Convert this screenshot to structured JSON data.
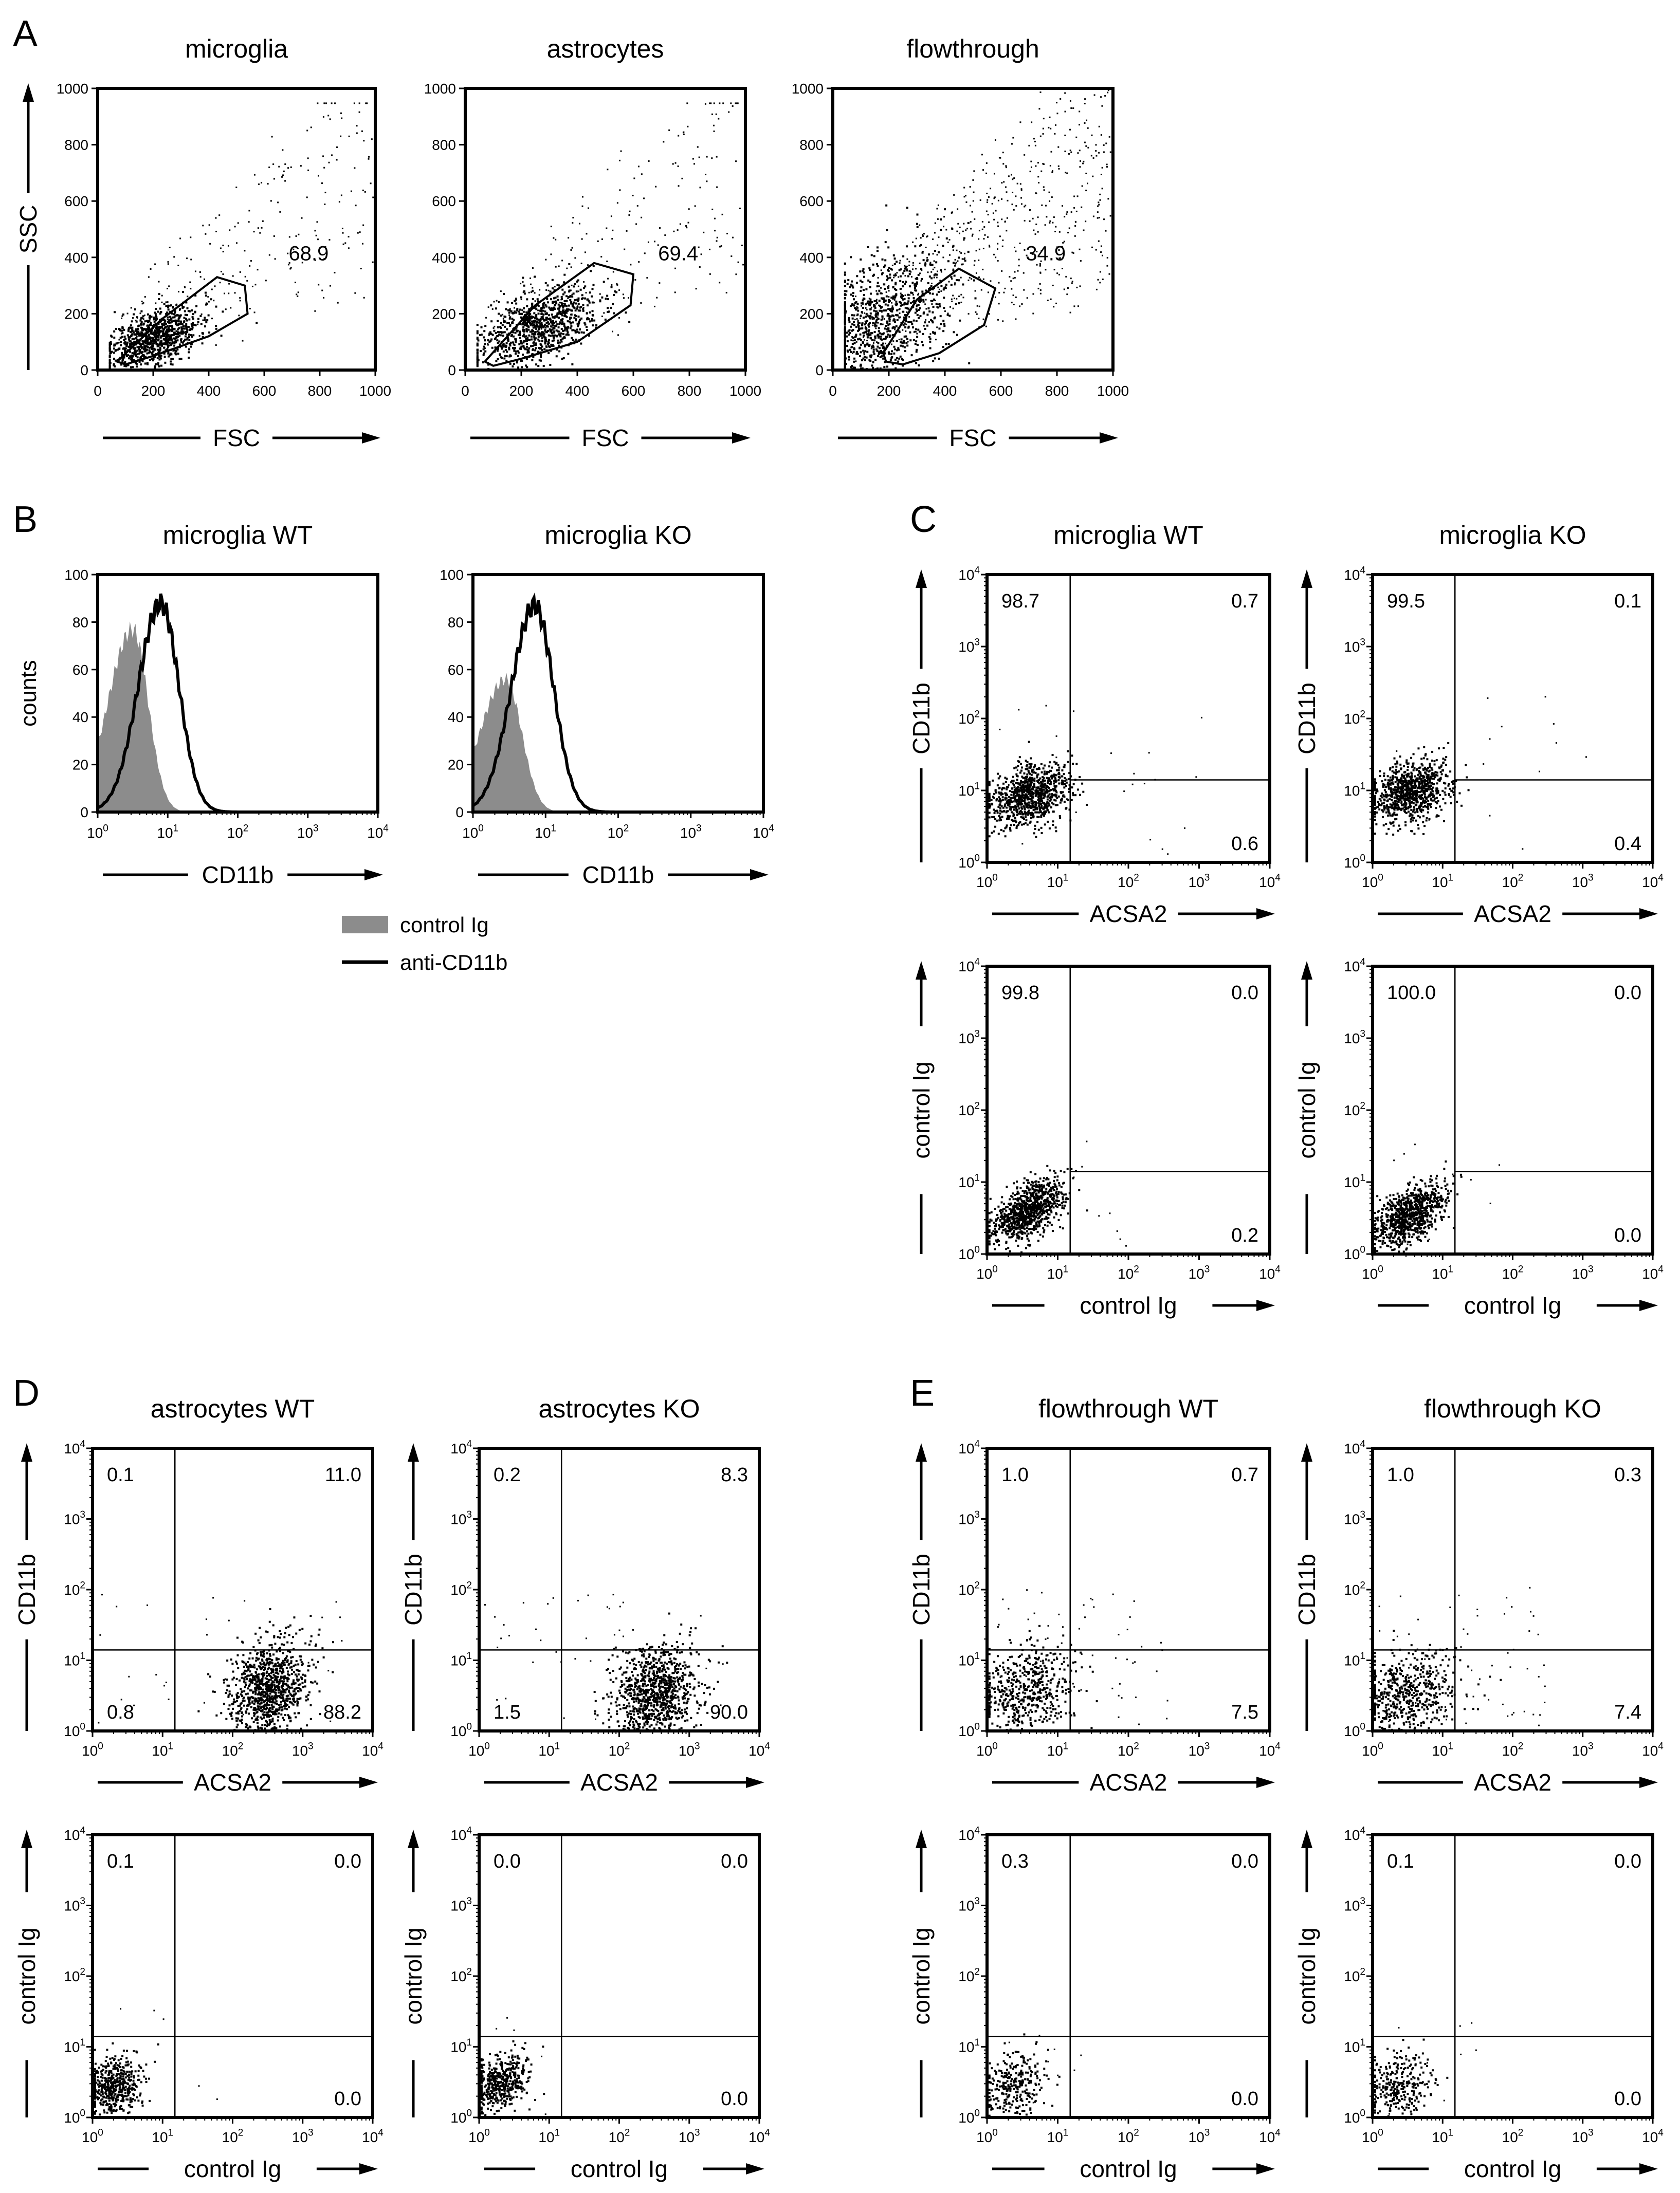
{
  "figure": {
    "panel_letters": [
      "A",
      "B",
      "C",
      "D",
      "E"
    ],
    "legend": {
      "control_label": "control Ig",
      "anti_label": "anti-CD11b",
      "control_color": "#8c8c8c",
      "anti_color": "#000000"
    }
  },
  "chart_data": [
    {
      "id": "A1",
      "panel": "A",
      "type": "scatter",
      "title": "microglia",
      "xlabel": "FSC",
      "ylabel": "SSC",
      "scale": "linear",
      "xlim": [
        0,
        1000
      ],
      "ylim": [
        0,
        1000
      ],
      "xticks": [
        "0",
        "200",
        "400",
        "600",
        "800",
        "1000"
      ],
      "yticks": [
        "0",
        "200",
        "400",
        "600",
        "800",
        "1000"
      ],
      "gate_value": "68.9",
      "gate_polygon": [
        [
          70,
          30
        ],
        [
          230,
          180
        ],
        [
          430,
          330
        ],
        [
          530,
          300
        ],
        [
          540,
          200
        ],
        [
          400,
          120
        ],
        [
          200,
          50
        ],
        [
          100,
          20
        ]
      ],
      "dist": {
        "cx": 200,
        "cy": 120,
        "sx": 80,
        "sy": 55,
        "n": 900,
        "tail_n": 250,
        "tail_xmax": 1000,
        "tail_ymax": 950,
        "corr": 0.5,
        "seed": 11
      }
    },
    {
      "id": "A2",
      "panel": "A",
      "type": "scatter",
      "title": "astrocytes",
      "xlabel": "FSC",
      "ylabel": "SSC",
      "scale": "linear",
      "xlim": [
        0,
        1000
      ],
      "ylim": [
        0,
        1000
      ],
      "xticks": [
        "0",
        "200",
        "400",
        "600",
        "800",
        "1000"
      ],
      "yticks": [
        "0",
        "200",
        "400",
        "600",
        "800",
        "1000"
      ],
      "gate_value": "69.4",
      "gate_polygon": [
        [
          70,
          30
        ],
        [
          250,
          230
        ],
        [
          460,
          380
        ],
        [
          600,
          340
        ],
        [
          590,
          230
        ],
        [
          400,
          100
        ],
        [
          200,
          40
        ],
        [
          100,
          15
        ]
      ],
      "dist": {
        "cx": 250,
        "cy": 150,
        "sx": 110,
        "sy": 70,
        "n": 900,
        "tail_n": 250,
        "tail_xmax": 1000,
        "tail_ymax": 950,
        "corr": 0.5,
        "seed": 23
      }
    },
    {
      "id": "A3",
      "panel": "A",
      "type": "scatter",
      "title": "flowthrough",
      "xlabel": "FSC",
      "ylabel": "SSC",
      "scale": "linear",
      "xlim": [
        0,
        1000
      ],
      "ylim": [
        0,
        1000
      ],
      "xticks": [
        "0",
        "200",
        "400",
        "600",
        "800",
        "1000"
      ],
      "yticks": [
        "0",
        "200",
        "400",
        "600",
        "800",
        "1000"
      ],
      "gate_value": "34.9",
      "gate_polygon": [
        [
          180,
          60
        ],
        [
          300,
          250
        ],
        [
          450,
          360
        ],
        [
          580,
          290
        ],
        [
          540,
          160
        ],
        [
          380,
          60
        ],
        [
          250,
          20
        ],
        [
          190,
          30
        ]
      ],
      "dist": {
        "cx": 150,
        "cy": 150,
        "sx": 130,
        "sy": 140,
        "n": 1000,
        "tail_n": 700,
        "tail_xmax": 1000,
        "tail_ymax": 1000,
        "corr": 0.45,
        "seed": 37
      }
    },
    {
      "id": "B1",
      "panel": "B",
      "type": "histogram",
      "title": "microglia WT",
      "xlabel": "CD11b",
      "ylabel": "counts",
      "ylim": [
        0,
        100
      ],
      "yticks": [
        "0",
        "20",
        "40",
        "60",
        "80",
        "100"
      ],
      "control": {
        "peak_log": 0.5,
        "height": 77,
        "width": 0.22
      },
      "anti": {
        "peak_log": 0.9,
        "height": 88,
        "width": 0.2
      }
    },
    {
      "id": "B2",
      "panel": "B",
      "type": "histogram",
      "title": "microglia KO",
      "xlabel": "CD11b",
      "ylabel": "",
      "ylim": [
        0,
        100
      ],
      "yticks": [
        "0",
        "20",
        "40",
        "60",
        "80",
        "100"
      ],
      "control": {
        "peak_log": 0.45,
        "height": 56,
        "width": 0.22
      },
      "anti": {
        "peak_log": 0.85,
        "height": 87,
        "width": 0.2
      }
    },
    {
      "id": "C1",
      "panel": "C",
      "type": "scatter",
      "title": "microglia WT",
      "xlabel": "ACSA2",
      "ylabel": "CD11b",
      "scale": "log",
      "xlim": [
        1,
        10000
      ],
      "ylim": [
        1,
        10000
      ],
      "quad_x": 15,
      "quad_y": 14,
      "quadrants": {
        "UL": "98.7",
        "UR": "0.7",
        "LL": "",
        "LR": "0.6"
      },
      "dist": {
        "cx": 0.6,
        "cy": 0.95,
        "sx": 0.28,
        "sy": 0.22,
        "n": 900,
        "tail_n": 25,
        "tail_xmax": 3,
        "tail_ymax": 2.3,
        "corr": 0.3,
        "seed": 41
      }
    },
    {
      "id": "C2",
      "panel": "C",
      "type": "scatter",
      "title": "microglia KO",
      "xlabel": "ACSA2",
      "ylabel": "CD11b",
      "scale": "log",
      "xlim": [
        1,
        10000
      ],
      "ylim": [
        1,
        10000
      ],
      "quad_x": 15,
      "quad_y": 14,
      "quadrants": {
        "UL": "99.5",
        "UR": "0.1",
        "LL": "",
        "LR": "0.4"
      },
      "dist": {
        "cx": 0.55,
        "cy": 1.0,
        "sx": 0.28,
        "sy": 0.22,
        "n": 900,
        "tail_n": 15,
        "tail_xmax": 3,
        "tail_ymax": 2.3,
        "corr": 0.3,
        "seed": 53
      }
    },
    {
      "id": "C3",
      "panel": "C",
      "type": "scatter",
      "title": "",
      "xlabel": "control Ig",
      "ylabel": "control Ig",
      "scale": "log",
      "xlim": [
        1,
        10000
      ],
      "ylim": [
        1,
        10000
      ],
      "quad_x": 15,
      "quad_y": 14,
      "quadrants": {
        "UL": "99.8",
        "UR": "0.0",
        "LL": "",
        "LR": "0.2"
      },
      "dist": {
        "cx": 0.55,
        "cy": 0.6,
        "sx": 0.25,
        "sy": 0.22,
        "n": 900,
        "tail_n": 10,
        "tail_xmax": 2,
        "tail_ymax": 1.6,
        "corr": 0.55,
        "seed": 67
      }
    },
    {
      "id": "C4",
      "panel": "C",
      "type": "scatter",
      "title": "",
      "xlabel": "control Ig",
      "ylabel": "control Ig",
      "scale": "log",
      "xlim": [
        1,
        10000
      ],
      "ylim": [
        1,
        10000
      ],
      "quad_x": 15,
      "quad_y": 14,
      "quadrants": {
        "UL": "100.0",
        "UR": "0.0",
        "LL": "",
        "LR": "0.0"
      },
      "dist": {
        "cx": 0.5,
        "cy": 0.55,
        "sx": 0.25,
        "sy": 0.22,
        "n": 900,
        "tail_n": 10,
        "tail_xmax": 2,
        "tail_ymax": 1.6,
        "corr": 0.55,
        "seed": 79
      }
    },
    {
      "id": "D1",
      "panel": "D",
      "type": "scatter",
      "title": "astrocytes WT",
      "xlabel": "ACSA2",
      "ylabel": "CD11b",
      "scale": "log",
      "xlim": [
        1,
        10000
      ],
      "ylim": [
        1,
        10000
      ],
      "quad_x": 15,
      "quad_y": 14,
      "quadrants": {
        "UL": "0.1",
        "UR": "11.0",
        "LL": "0.8",
        "LR": "88.2"
      },
      "dist": {
        "cx": 2.5,
        "cy": 0.6,
        "sx": 0.3,
        "sy": 0.35,
        "n": 1000,
        "tail_n": 30,
        "tail_xmax": 3.5,
        "tail_ymax": 2.0,
        "corr": 0.2,
        "seed": 97
      }
    },
    {
      "id": "D2",
      "panel": "D",
      "type": "scatter",
      "title": "astrocytes KO",
      "xlabel": "ACSA2",
      "ylabel": "CD11b",
      "scale": "log",
      "xlim": [
        1,
        10000
      ],
      "ylim": [
        1,
        10000
      ],
      "quad_x": 15,
      "quad_y": 14,
      "quadrants": {
        "UL": "0.2",
        "UR": "8.3",
        "LL": "1.5",
        "LR": "90.0"
      },
      "dist": {
        "cx": 2.5,
        "cy": 0.55,
        "sx": 0.3,
        "sy": 0.35,
        "n": 1000,
        "tail_n": 40,
        "tail_xmax": 3.5,
        "tail_ymax": 2.0,
        "corr": 0.2,
        "seed": 101
      }
    },
    {
      "id": "D3",
      "panel": "D",
      "type": "scatter",
      "title": "",
      "xlabel": "control Ig",
      "ylabel": "control Ig",
      "scale": "log",
      "xlim": [
        1,
        10000
      ],
      "ylim": [
        1,
        10000
      ],
      "quad_x": 15,
      "quad_y": 14,
      "quadrants": {
        "UL": "0.1",
        "UR": "0.0",
        "LL": "",
        "LR": "0.0"
      },
      "dist": {
        "cx": 0.3,
        "cy": 0.45,
        "sx": 0.2,
        "sy": 0.2,
        "n": 500,
        "tail_n": 5,
        "tail_xmax": 1.8,
        "tail_ymax": 1.6,
        "corr": 0.2,
        "seed": 113
      }
    },
    {
      "id": "D4",
      "panel": "D",
      "type": "scatter",
      "title": "",
      "xlabel": "control Ig",
      "ylabel": "control Ig",
      "scale": "log",
      "xlim": [
        1,
        10000
      ],
      "ylim": [
        1,
        10000
      ],
      "quad_x": 15,
      "quad_y": 14,
      "quadrants": {
        "UL": "0.0",
        "UR": "0.0",
        "LL": "",
        "LR": "0.0"
      },
      "dist": {
        "cx": 0.3,
        "cy": 0.5,
        "sx": 0.2,
        "sy": 0.2,
        "n": 500,
        "tail_n": 5,
        "tail_xmax": 1.8,
        "tail_ymax": 1.6,
        "corr": 0.2,
        "seed": 127
      }
    },
    {
      "id": "E1",
      "panel": "E",
      "type": "scatter",
      "title": "flowthrough WT",
      "xlabel": "ACSA2",
      "ylabel": "CD11b",
      "scale": "log",
      "xlim": [
        1,
        10000
      ],
      "ylim": [
        1,
        10000
      ],
      "quad_x": 15,
      "quad_y": 14,
      "quadrants": {
        "UL": "1.0",
        "UR": "0.7",
        "LL": "",
        "LR": "7.5"
      },
      "dist": {
        "cx": 0.5,
        "cy": 0.6,
        "sx": 0.35,
        "sy": 0.3,
        "n": 550,
        "tail_n": 60,
        "tail_xmax": 2.5,
        "tail_ymax": 2.0,
        "corr": 0.2,
        "seed": 131
      }
    },
    {
      "id": "E2",
      "panel": "E",
      "type": "scatter",
      "title": "flowthrough KO",
      "xlabel": "ACSA2",
      "ylabel": "CD11b",
      "scale": "log",
      "xlim": [
        1,
        10000
      ],
      "ylim": [
        1,
        10000
      ],
      "quad_x": 15,
      "quad_y": 14,
      "quadrants": {
        "UL": "1.0",
        "UR": "0.3",
        "LL": "",
        "LR": "7.4"
      },
      "dist": {
        "cx": 0.5,
        "cy": 0.55,
        "sx": 0.35,
        "sy": 0.3,
        "n": 550,
        "tail_n": 60,
        "tail_xmax": 2.5,
        "tail_ymax": 2.0,
        "corr": 0.2,
        "seed": 137
      }
    },
    {
      "id": "E3",
      "panel": "E",
      "type": "scatter",
      "title": "",
      "xlabel": "control Ig",
      "ylabel": "control Ig",
      "scale": "log",
      "xlim": [
        1,
        10000
      ],
      "ylim": [
        1,
        10000
      ],
      "quad_x": 15,
      "quad_y": 14,
      "quadrants": {
        "UL": "0.3",
        "UR": "0.0",
        "LL": "",
        "LR": "0.0"
      },
      "dist": {
        "cx": 0.35,
        "cy": 0.45,
        "sx": 0.22,
        "sy": 0.25,
        "n": 300,
        "tail_n": 10,
        "tail_xmax": 1.5,
        "tail_ymax": 1.3,
        "corr": 0.2,
        "seed": 149
      }
    },
    {
      "id": "E4",
      "panel": "E",
      "type": "scatter",
      "title": "",
      "xlabel": "control Ig",
      "ylabel": "control Ig",
      "scale": "log",
      "xlim": [
        1,
        10000
      ],
      "ylim": [
        1,
        10000
      ],
      "quad_x": 15,
      "quad_y": 14,
      "quadrants": {
        "UL": "0.1",
        "UR": "0.0",
        "LL": "",
        "LR": "0.0"
      },
      "dist": {
        "cx": 0.35,
        "cy": 0.45,
        "sx": 0.22,
        "sy": 0.22,
        "n": 300,
        "tail_n": 8,
        "tail_xmax": 1.5,
        "tail_ymax": 1.3,
        "corr": 0.2,
        "seed": 151
      }
    }
  ]
}
